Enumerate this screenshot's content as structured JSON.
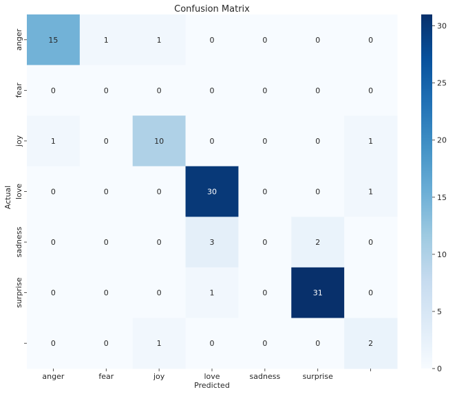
{
  "chart_data": {
    "type": "heatmap",
    "title": "Confusion Matrix",
    "xlabel": "Predicted",
    "ylabel": "Actual",
    "x_tick_labels": [
      "anger",
      "fear",
      "joy",
      "love",
      "sadness",
      "surprise",
      ""
    ],
    "y_tick_labels": [
      "anger",
      "fear",
      "joy",
      "love",
      "sadness",
      "surprise",
      ""
    ],
    "values": [
      [
        15,
        1,
        1,
        0,
        0,
        0,
        0
      ],
      [
        0,
        0,
        0,
        0,
        0,
        0,
        0
      ],
      [
        1,
        0,
        10,
        0,
        0,
        0,
        1
      ],
      [
        0,
        0,
        0,
        30,
        0,
        0,
        1
      ],
      [
        0,
        0,
        0,
        3,
        0,
        2,
        0
      ],
      [
        0,
        0,
        0,
        1,
        0,
        31,
        0
      ],
      [
        0,
        0,
        1,
        0,
        0,
        0,
        2
      ]
    ],
    "colormap": "Blues",
    "color_low": "#f7fbff",
    "color_high": "#08306b",
    "vmin": 0,
    "vmax": 31,
    "colorbar_ticks": [
      0,
      5,
      10,
      15,
      20,
      25,
      30
    ]
  }
}
